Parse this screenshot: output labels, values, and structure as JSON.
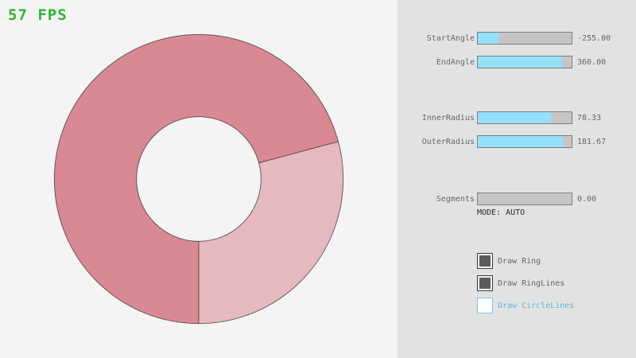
{
  "fps": {
    "text": "57 FPS",
    "color": "#2fb62f"
  },
  "ring": {
    "color_dark": "#d98994",
    "color_light": "#e6b8c0",
    "hole_color": "#f4f4f4",
    "line_color": "rgba(0,0,0,0.55)",
    "inner_radius": "78.33",
    "outer_radius": "181.67"
  },
  "panel": {
    "sliders": [
      {
        "label": "StartAngle",
        "value": "-255.00",
        "fraction": 0.217
      },
      {
        "label": "EndAngle",
        "value": "360.00",
        "fraction": 0.9
      },
      {
        "label": "InnerRadius",
        "value": "78.33",
        "fraction": 0.783
      },
      {
        "label": "OuterRadius",
        "value": "181.67",
        "fraction": 0.908
      },
      {
        "label": "Segments",
        "value": "0.00",
        "fraction": 0.0
      }
    ],
    "mode_text": "MODE: AUTO",
    "checkboxes": [
      {
        "label": "Draw Ring",
        "checked": true
      },
      {
        "label": "Draw RingLines",
        "checked": true
      },
      {
        "label": "Draw CircleLines",
        "checked": false
      }
    ],
    "accent_fill": "#93e1f8"
  }
}
